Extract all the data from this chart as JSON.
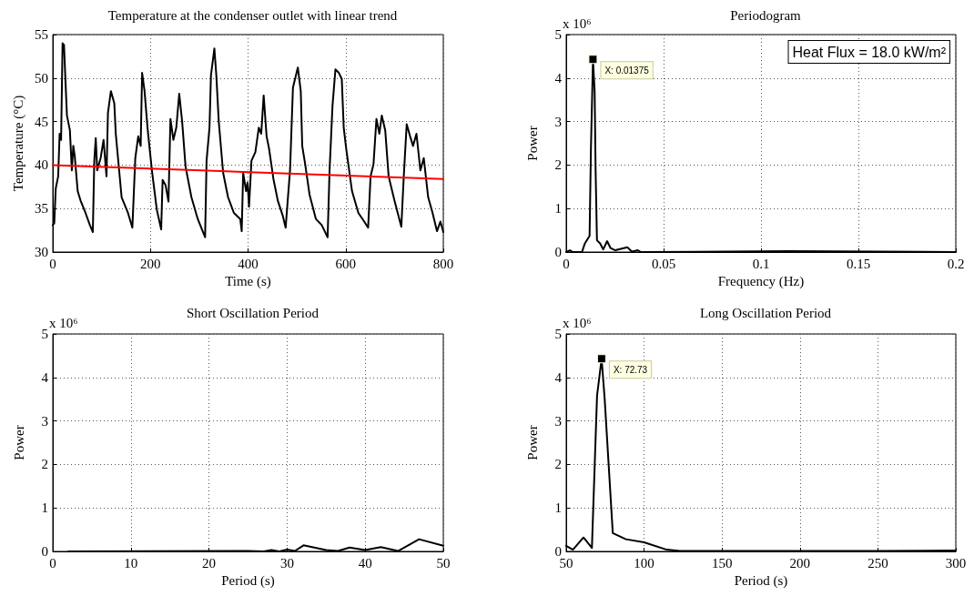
{
  "chart_data": [
    {
      "type": "line",
      "title": "Temperature at the condenser outlet with linear trend",
      "xlabel": "Time (s)",
      "ylabel": "Temperature (°C)",
      "xlim": [
        0,
        800
      ],
      "ylim": [
        30,
        55
      ],
      "xticks": [
        0,
        200,
        400,
        600,
        800
      ],
      "yticks": [
        30,
        35,
        40,
        45,
        50,
        55
      ],
      "grid": true,
      "line_style": "solid",
      "series": [
        {
          "color": "#000000",
          "x": [
            0,
            3,
            6,
            11,
            14,
            17,
            20,
            23,
            26,
            29,
            35,
            39,
            42,
            45,
            51,
            57,
            67,
            76,
            82,
            85,
            88,
            91,
            98,
            104,
            110,
            113,
            119,
            126,
            129,
            141,
            154,
            163,
            169,
            175,
            180,
            183,
            188,
            194,
            203,
            213,
            222,
            225,
            231,
            237,
            241,
            247,
            253,
            259,
            265,
            272,
            284,
            297,
            312,
            315,
            321,
            324,
            331,
            335,
            340,
            349,
            359,
            371,
            384,
            387,
            390,
            396,
            399,
            402,
            407,
            415,
            422,
            427,
            432,
            438,
            443,
            452,
            461,
            471,
            477,
            486,
            492,
            498,
            502,
            508,
            511,
            517,
            526,
            539,
            551,
            563,
            567,
            573,
            579,
            586,
            592,
            596,
            601,
            613,
            626,
            638,
            646,
            651,
            657,
            663,
            669,
            674,
            681,
            688,
            700,
            714,
            719,
            725,
            732,
            738,
            745,
            753,
            760,
            769,
            778,
            787,
            794,
            800
          ],
          "values": [
            33.1,
            33.3,
            37.3,
            38.7,
            43.6,
            42.9,
            54.0,
            53.8,
            49.6,
            45.7,
            44.0,
            39.4,
            42.2,
            41.0,
            37.0,
            35.9,
            34.5,
            33.1,
            32.3,
            40.5,
            43.1,
            39.4,
            40.8,
            42.9,
            38.7,
            46.0,
            48.5,
            47.1,
            43.6,
            36.3,
            34.5,
            32.8,
            40.8,
            43.3,
            42.2,
            50.6,
            48.5,
            44.3,
            39.4,
            34.9,
            32.6,
            38.3,
            37.7,
            35.8,
            45.3,
            42.9,
            44.3,
            48.2,
            45.0,
            39.8,
            36.3,
            33.8,
            31.7,
            40.5,
            44.3,
            50.3,
            53.4,
            50.3,
            45.0,
            39.1,
            36.3,
            34.5,
            33.8,
            32.4,
            39.1,
            37.0,
            38.0,
            35.2,
            40.5,
            41.5,
            44.3,
            43.6,
            48.0,
            43.3,
            41.9,
            38.4,
            35.9,
            34.2,
            32.8,
            39.4,
            48.9,
            50.3,
            51.2,
            48.5,
            42.2,
            40.1,
            36.6,
            33.8,
            33.1,
            31.7,
            39.4,
            46.8,
            51.0,
            50.6,
            49.9,
            44.3,
            41.9,
            37.0,
            34.5,
            33.5,
            32.8,
            38.7,
            40.1,
            45.3,
            43.6,
            45.7,
            44.0,
            38.7,
            35.9,
            32.9,
            38.7,
            44.7,
            43.3,
            42.2,
            43.6,
            39.4,
            40.8,
            36.3,
            34.5,
            32.4,
            33.5,
            32.3
          ]
        },
        {
          "color": "#ff0000",
          "x": [
            0,
            800
          ],
          "values": [
            40.0,
            38.4
          ]
        }
      ]
    },
    {
      "type": "line",
      "title": "Periodogram",
      "xlabel": "Frequency (Hz)",
      "ylabel": "Power",
      "xlim": [
        0,
        0.2
      ],
      "ylim": [
        0,
        5
      ],
      "xticks": [
        0,
        0.05,
        0.1,
        0.15,
        0.2
      ],
      "yticks": [
        0,
        1,
        2,
        3,
        4,
        5
      ],
      "grid": true,
      "line_style": "solid",
      "annotations": [
        "x 10⁶",
        "Heat Flux = 18.0 kW/m²",
        {
          "text": "X: 0.01375",
          "x": 0.01375,
          "y": 4.43
        }
      ],
      "series": [
        {
          "color": "#000000",
          "x": [
            0,
            0.0019,
            0.0034,
            0.0081,
            0.0096,
            0.012,
            0.0127,
            0.01375,
            0.0146,
            0.0151,
            0.0158,
            0.0174,
            0.019,
            0.021,
            0.0228,
            0.0252,
            0.0314,
            0.0337,
            0.0368,
            0.0384,
            0.1138,
            0.2
          ],
          "values": [
            0,
            0.04,
            0,
            0,
            0.2,
            0.37,
            2.37,
            4.43,
            3.7,
            1.88,
            0.27,
            0.2,
            0.06,
            0.25,
            0.09,
            0.04,
            0.11,
            0.01,
            0.04,
            0,
            0.02,
            0
          ]
        }
      ]
    },
    {
      "type": "line",
      "title": "Short Oscillation Period",
      "xlabel": "Period (s)",
      "ylabel": "Power",
      "xlim": [
        0,
        50
      ],
      "ylim": [
        0,
        5
      ],
      "xticks": [
        0,
        10,
        20,
        30,
        40,
        50
      ],
      "yticks": [
        0,
        1,
        2,
        3,
        4,
        5
      ],
      "grid": true,
      "line_style": "solid",
      "annotations": [
        "x 10⁶"
      ],
      "series": [
        {
          "color": "#000000",
          "x": [
            2,
            25,
            27,
            28,
            29,
            30,
            31,
            32.1,
            35,
            36.5,
            38,
            40,
            42,
            44.2,
            46.9,
            50
          ],
          "values": [
            0,
            0.01,
            0,
            0.03,
            0,
            0.04,
            0.01,
            0.14,
            0.03,
            0.01,
            0.09,
            0.03,
            0.1,
            0.01,
            0.28,
            0.13
          ]
        }
      ]
    },
    {
      "type": "line",
      "title": "Long Oscillation Period",
      "xlabel": "Period (s)",
      "ylabel": "Power",
      "xlim": [
        50,
        300
      ],
      "ylim": [
        0,
        5
      ],
      "xticks": [
        50,
        100,
        150,
        200,
        250,
        300
      ],
      "yticks": [
        0,
        1,
        2,
        3,
        4,
        5
      ],
      "grid": true,
      "line_style": "solid",
      "annotations": [
        "x 10⁶",
        {
          "text": "X: 72.73",
          "x": 72.73,
          "y": 4.43
        }
      ],
      "series": [
        {
          "color": "#000000",
          "x": [
            50,
            54.3,
            61.1,
            66.5,
            69.8,
            72.73,
            74.7,
            79.9,
            88.3,
            100,
            114.5,
            123,
            150,
            200,
            250,
            300
          ],
          "values": [
            0.13,
            0.04,
            0.32,
            0.08,
            3.58,
            4.43,
            3.5,
            0.42,
            0.28,
            0.21,
            0.04,
            0.01,
            0.01,
            0.01,
            0.01,
            0.02
          ]
        }
      ]
    }
  ]
}
